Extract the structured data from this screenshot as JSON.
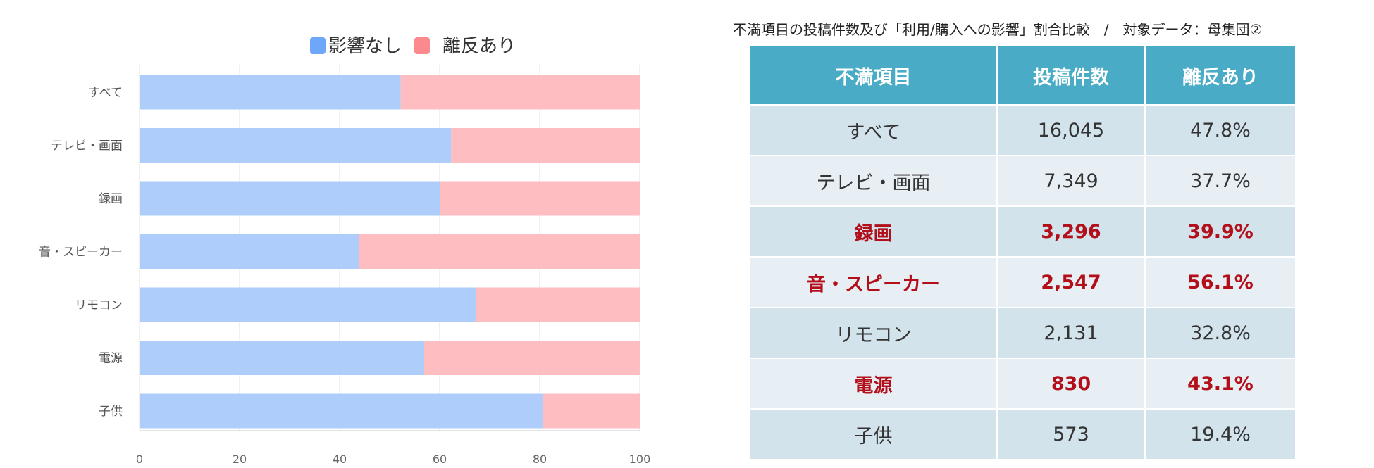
{
  "chart_data": {
    "type": "bar",
    "orientation": "horizontal",
    "stacked": true,
    "categories": [
      "すべて",
      "テレビ・画面",
      "録画",
      "音・スピーカー",
      "リモコン",
      "電源",
      "子供"
    ],
    "series": [
      {
        "name": "影響なし",
        "values": [
          52.2,
          62.3,
          60.1,
          43.9,
          67.2,
          56.9,
          80.6
        ],
        "color": "#aecdfb",
        "legend_color": "#6ea6f9"
      },
      {
        "name": "離反あり",
        "values": [
          47.8,
          37.7,
          39.9,
          56.1,
          32.8,
          43.1,
          19.4
        ],
        "color": "#fdbdc1",
        "legend_color": "#fb8a8f"
      }
    ],
    "xlim": [
      0,
      100
    ],
    "xticks": [
      "0",
      "20",
      "40",
      "60",
      "80",
      "100"
    ],
    "grid": true,
    "legend": "top-center"
  },
  "table": {
    "title": "不満項目の投稿件数及び「利用/購入への影響」割合比較　/　対象データ：母集団②",
    "headers": [
      "不満項目",
      "投稿件数",
      "離反あり"
    ],
    "rows": [
      {
        "item": "すべて",
        "count": "16,045",
        "rate": "47.8%",
        "highlight": false
      },
      {
        "item": "テレビ・画面",
        "count": "7,349",
        "rate": "37.7%",
        "highlight": false
      },
      {
        "item": "録画",
        "count": "3,296",
        "rate": "39.9%",
        "highlight": true
      },
      {
        "item": "音・スピーカー",
        "count": "2,547",
        "rate": "56.1%",
        "highlight": true
      },
      {
        "item": "リモコン",
        "count": "2,131",
        "rate": "32.8%",
        "highlight": false
      },
      {
        "item": "電源",
        "count": "830",
        "rate": "43.1%",
        "highlight": true
      },
      {
        "item": "子供",
        "count": "573",
        "rate": "19.4%",
        "highlight": false
      }
    ]
  }
}
